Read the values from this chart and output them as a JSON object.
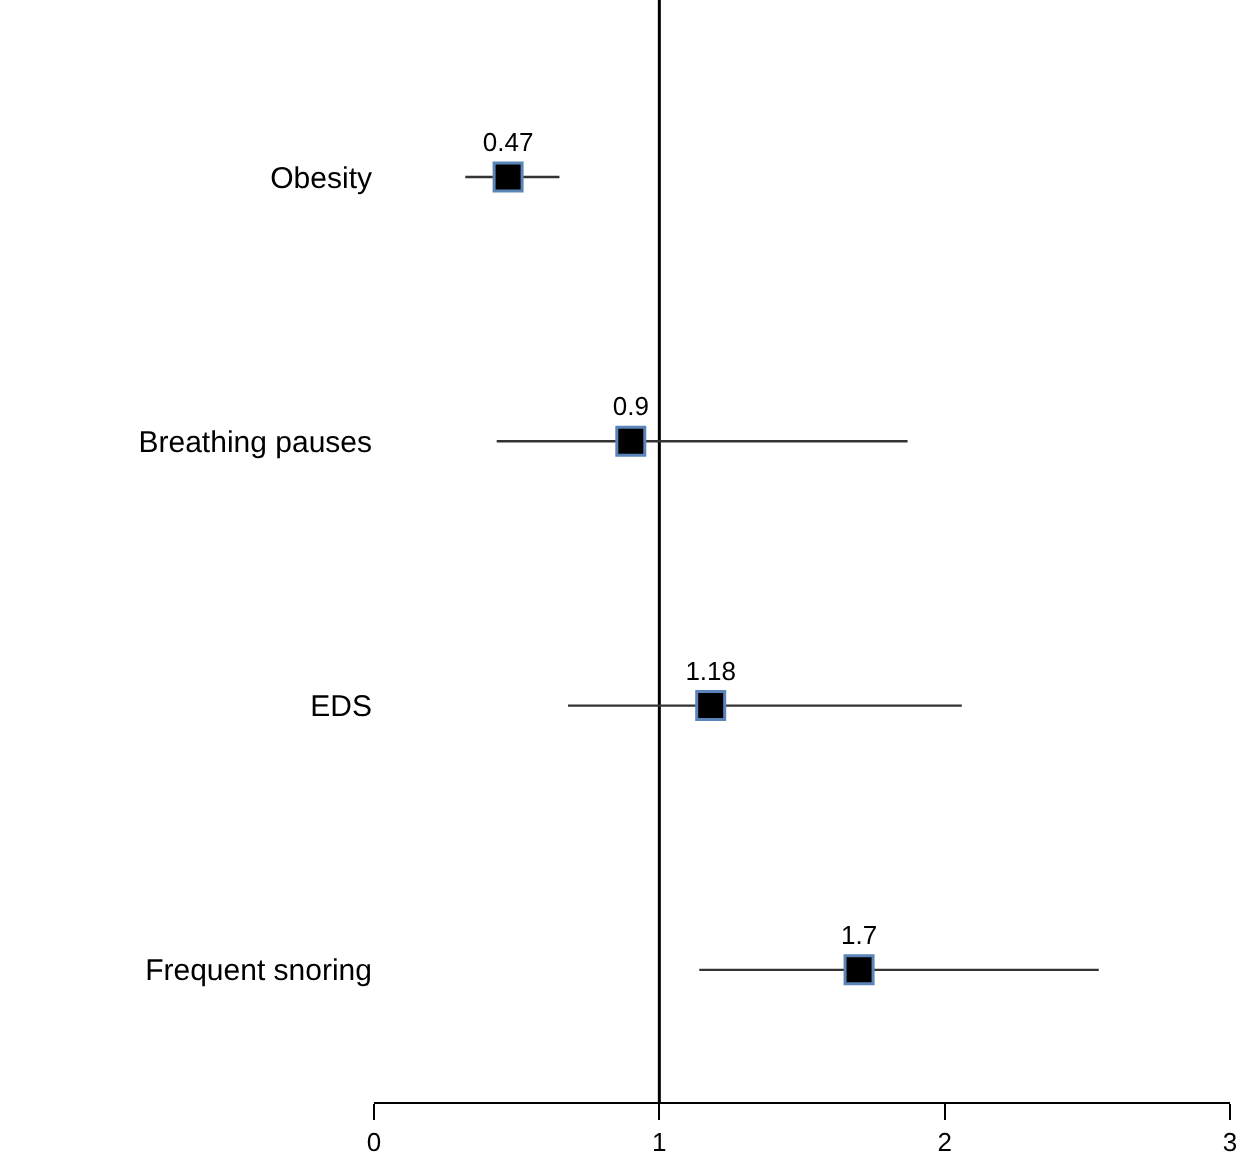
{
  "chart_data": {
    "type": "scatter",
    "orientation": "horizontal",
    "categories": [
      "Obesity",
      "Breathing pauses",
      "EDS",
      "Frequent snoring"
    ],
    "values": [
      0.47,
      0.9,
      1.18,
      1.7
    ],
    "errors": [
      [
        0.32,
        0.65
      ],
      [
        0.43,
        1.87
      ],
      [
        0.68,
        2.06
      ],
      [
        1.14,
        2.54
      ]
    ],
    "color": "#000000",
    "marker": "square",
    "data_labels": true,
    "xlim": [
      0,
      3
    ],
    "xticks": [
      0,
      1,
      2,
      3
    ],
    "ref_lines": [
      {
        "axis": "x",
        "value": 1,
        "color": "#000000"
      }
    ],
    "grid": false,
    "legend": false
  }
}
